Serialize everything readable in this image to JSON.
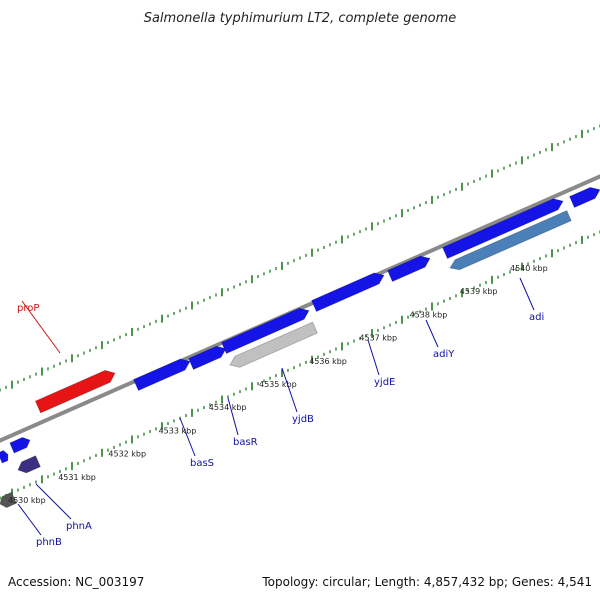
{
  "title": "Salmonella typhimurium LT2, complete genome",
  "footer": {
    "accession": "Accession: NC_003197",
    "summary": "Topology: circular; Length: 4,857,432 bp; Genes: 4,541"
  },
  "colors": {
    "backbone": "#8c8c8c",
    "forward_gene": "#1414e6",
    "highlight_gene": "#e61414",
    "gray_gene": "#c0c0c0",
    "steel_gene": "#4a7fb8",
    "dark_gene": "#555555",
    "purple_gene": "#3a2f80",
    "tick": "#1f7a1f",
    "label_blue": "#1010a0",
    "label_red": "#d01010"
  },
  "ruler": {
    "tick_labels": [
      "4530 kbp",
      "4531 kbp",
      "4532 kbp",
      "4533 kbp",
      "4534 kbp",
      "4535 kbp",
      "4536 kbp",
      "4537 kbp",
      "4538 kbp",
      "4539 kbp",
      "4540 kbp"
    ]
  },
  "genes": [
    {
      "name": "proP",
      "strand": "+",
      "color": "highlight_gene"
    },
    {
      "name": "phnA",
      "strand": "-",
      "color": "purple_gene"
    },
    {
      "name": "phnB",
      "strand": "-",
      "color": "dark_gene"
    },
    {
      "name": "basS",
      "strand": "+",
      "color": "forward_gene"
    },
    {
      "name": "basR",
      "strand": "+",
      "color": "forward_gene"
    },
    {
      "name": "yjdB",
      "strand": "-",
      "color": "gray_gene"
    },
    {
      "name": "yjdE",
      "strand": "+",
      "color": "forward_gene"
    },
    {
      "name": "adiY",
      "strand": "+",
      "color": "forward_gene"
    },
    {
      "name": "adi",
      "strand": "-",
      "color": "steel_gene"
    }
  ]
}
